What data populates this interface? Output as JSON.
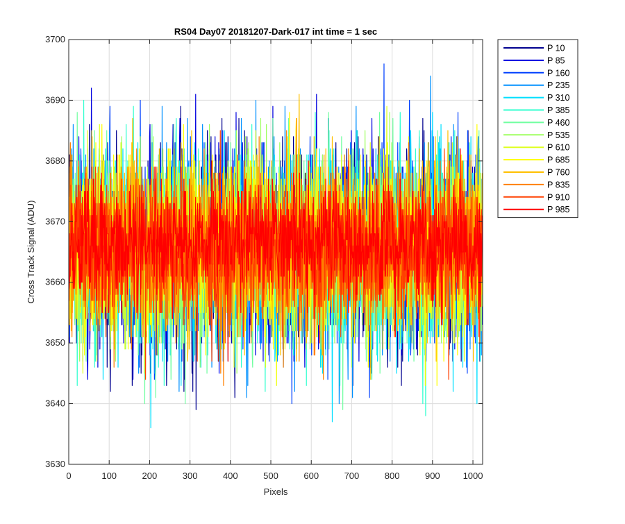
{
  "chart_data": {
    "type": "line",
    "title": "RS04 Day07 20181207-Dark-017 int time = 1 sec",
    "xlabel": "Pixels",
    "ylabel": "Cross Track Signal (ADU)",
    "xlim": [
      0,
      1024
    ],
    "ylim": [
      3630,
      3700
    ],
    "x_ticks": [
      0,
      100,
      200,
      300,
      400,
      500,
      600,
      700,
      800,
      900,
      1000
    ],
    "y_ticks": [
      3630,
      3640,
      3650,
      3660,
      3670,
      3680,
      3690,
      3700
    ],
    "grid": true,
    "legend_placement": "outside-right",
    "x_range_of_samples": [
      0,
      1023
    ],
    "series": [
      {
        "name": "P 10",
        "color": "#00008f",
        "mean": 3665.5,
        "sd": 8.5
      },
      {
        "name": "P 85",
        "color": "#0000df",
        "mean": 3665.5,
        "sd": 8.5
      },
      {
        "name": "P 160",
        "color": "#0040ff",
        "mean": 3665.5,
        "sd": 8.0
      },
      {
        "name": "P 235",
        "color": "#0090ff",
        "mean": 3665.5,
        "sd": 8.0
      },
      {
        "name": "P 310",
        "color": "#00dfff",
        "mean": 3665.5,
        "sd": 8.0
      },
      {
        "name": "P 385",
        "color": "#30ffcf",
        "mean": 3665.5,
        "sd": 8.0
      },
      {
        "name": "P 460",
        "color": "#70ffa0",
        "mean": 3665.5,
        "sd": 8.0
      },
      {
        "name": "P 535",
        "color": "#9fff60",
        "mean": 3665.5,
        "sd": 7.5
      },
      {
        "name": "P 610",
        "color": "#dfff20",
        "mean": 3665.5,
        "sd": 7.5
      },
      {
        "name": "P 685",
        "color": "#ffff00",
        "mean": 3665.5,
        "sd": 7.5
      },
      {
        "name": "P 760",
        "color": "#ffbf00",
        "mean": 3665.5,
        "sd": 7.0
      },
      {
        "name": "P 835",
        "color": "#ff8000",
        "mean": 3665.5,
        "sd": 6.5
      },
      {
        "name": "P 910",
        "color": "#ff4000",
        "mean": 3665.5,
        "sd": 6.0
      },
      {
        "name": "P 985",
        "color": "#ff0000",
        "mean": 3666.5,
        "sd": 5.0
      }
    ]
  }
}
